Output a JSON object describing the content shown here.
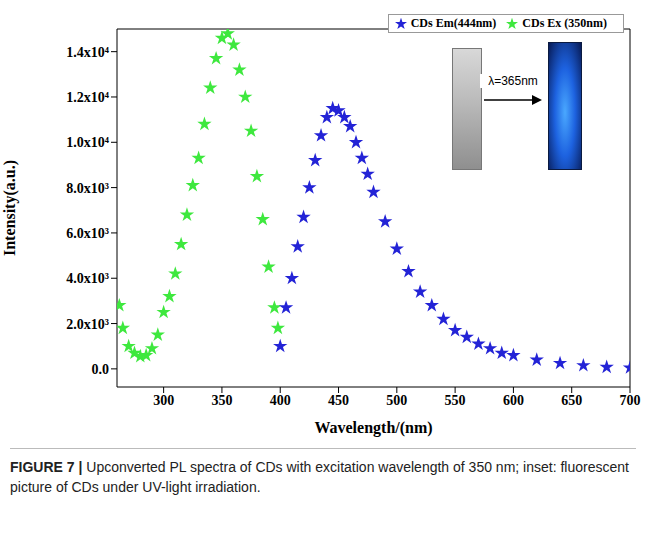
{
  "chart_data": {
    "type": "scatter",
    "caption": "FIGURE 7 | Upconverted PL spectra of CDs with excitation wavelength of 350 nm; inset: fluorescent picture of CDs under UV-light irradiation.",
    "xlabel": "Wavelength/(nm)",
    "ylabel": "Intensity(a.u.)",
    "annotations": [
      "λ=365nm"
    ],
    "xlim": [
      260,
      700
    ],
    "xticks": [
      300,
      350,
      400,
      450,
      500,
      550,
      600,
      650,
      700
    ],
    "ylim": [
      -800,
      15000
    ],
    "yticks": [
      {
        "value": 0,
        "label": "0.0"
      },
      {
        "value": 2000,
        "label": "2.0x10³"
      },
      {
        "value": 4000,
        "label": "4.0x10³"
      },
      {
        "value": 6000,
        "label": "6.0x10³"
      },
      {
        "value": 8000,
        "label": "8.0x10³"
      },
      {
        "value": 10000,
        "label": "1.0x10⁴"
      },
      {
        "value": 12000,
        "label": "1.2x10⁴"
      },
      {
        "value": 14000,
        "label": "1.4x10⁴"
      }
    ],
    "legend": "upper right",
    "series": [
      {
        "name": "CDs Ex (350nm)",
        "color": "#3ee83e",
        "marker": "star",
        "x": [
          262,
          265,
          270,
          275,
          280,
          285,
          290,
          295,
          300,
          305,
          310,
          315,
          320,
          325,
          330,
          335,
          340,
          345,
          350,
          355,
          360,
          365,
          370,
          375,
          380,
          385,
          390,
          395,
          398
        ],
        "values": [
          2800,
          1800,
          1000,
          700,
          550,
          600,
          900,
          1500,
          2500,
          3200,
          4200,
          5500,
          6800,
          8100,
          9300,
          10800,
          12400,
          13700,
          14600,
          14800,
          14300,
          13200,
          12000,
          10500,
          8500,
          6600,
          4500,
          2700,
          1800
        ]
      },
      {
        "name": "CDs Em(444nm)",
        "color": "#2323d6",
        "marker": "star",
        "x": [
          400,
          405,
          410,
          415,
          420,
          425,
          430,
          435,
          440,
          445,
          450,
          455,
          460,
          465,
          470,
          475,
          480,
          490,
          500,
          510,
          520,
          530,
          540,
          550,
          560,
          570,
          580,
          590,
          600,
          620,
          640,
          660,
          680,
          700
        ],
        "values": [
          1000,
          2700,
          4000,
          5400,
          6700,
          8000,
          9200,
          10300,
          11100,
          11500,
          11400,
          11100,
          10700,
          10000,
          9300,
          8600,
          7800,
          6500,
          5300,
          4300,
          3400,
          2800,
          2200,
          1700,
          1400,
          1100,
          900,
          700,
          600,
          400,
          250,
          150,
          80,
          50
        ]
      }
    ]
  }
}
